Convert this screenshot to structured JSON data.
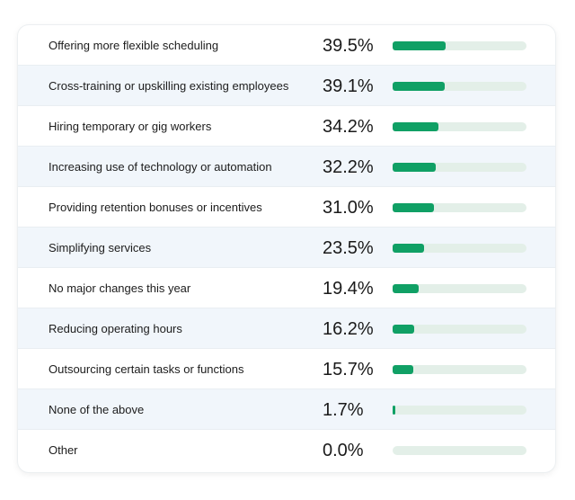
{
  "chart_data": {
    "type": "bar",
    "orientation": "horizontal",
    "unit": "%",
    "xlim": [
      0,
      100
    ],
    "bar_color": "#10a065",
    "track_color": "#e3efe8",
    "row_alt_color": "#f1f6fb",
    "categories": [
      "Offering more flexible scheduling",
      "Cross-training or upskilling existing employees",
      "Hiring temporary or gig workers",
      "Increasing use of technology or automation",
      "Providing retention bonuses or incentives",
      "Simplifying services",
      "No major changes this year",
      "Reducing operating hours",
      "Outsourcing certain tasks or functions",
      "None of the above",
      "Other"
    ],
    "values": [
      39.5,
      39.1,
      34.2,
      32.2,
      31.0,
      23.5,
      19.4,
      16.2,
      15.7,
      1.7,
      0.0
    ],
    "value_labels": [
      "39.5%",
      "39.1%",
      "34.2%",
      "32.2%",
      "31.0%",
      "23.5%",
      "19.4%",
      "16.2%",
      "15.7%",
      "1.7%",
      "0.0%"
    ]
  }
}
